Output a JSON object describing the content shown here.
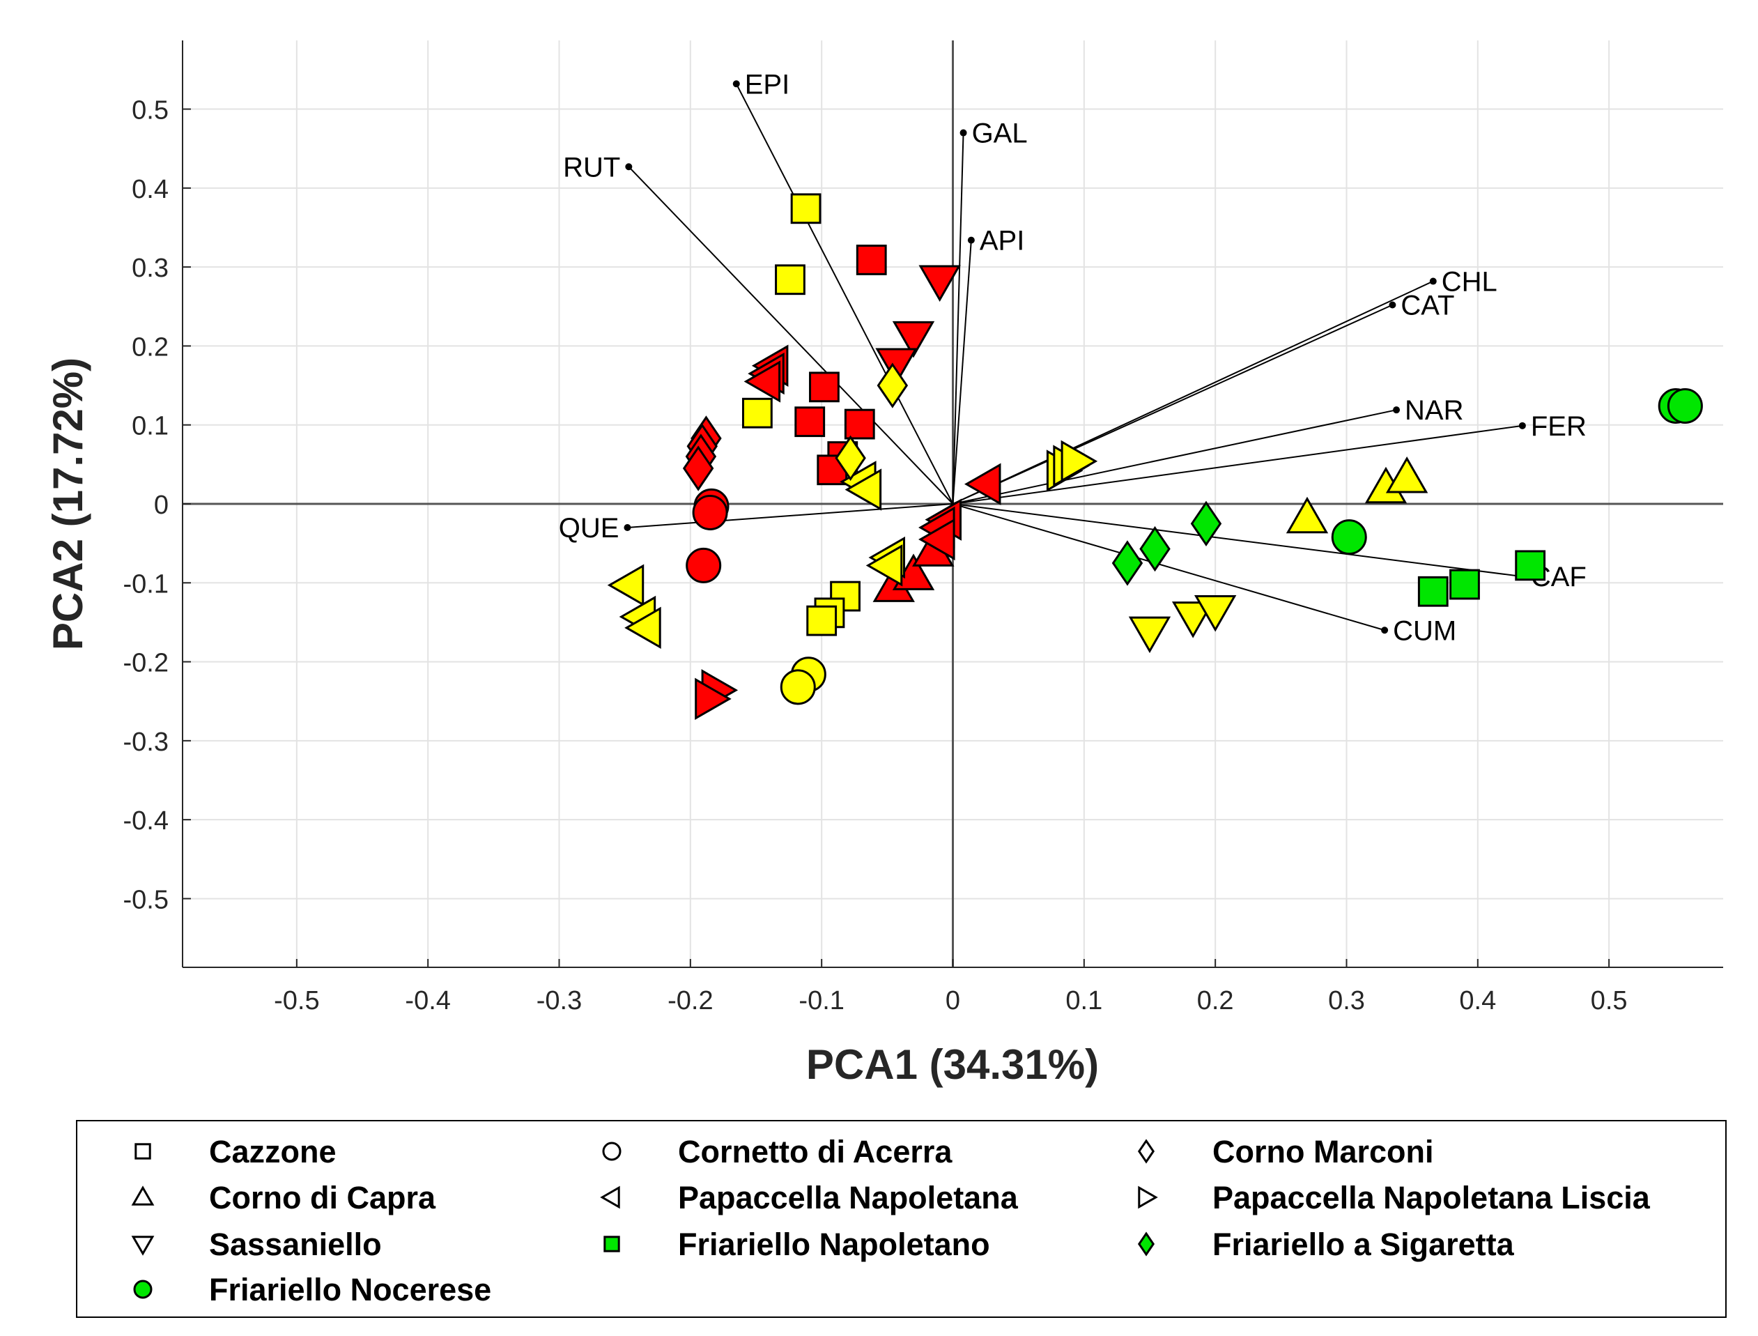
{
  "chart_data": {
    "type": "scatter",
    "title": "",
    "xlabel": "PCA1 (34.31%)",
    "ylabel": "PCA2 (17.72%)",
    "xlim": [
      -0.587,
      0.587
    ],
    "ylim": [
      -0.587,
      0.587
    ],
    "xticks": [
      -0.5,
      -0.4,
      -0.3,
      -0.2,
      -0.1,
      0,
      0.1,
      0.2,
      0.3,
      0.4,
      0.5
    ],
    "yticks": [
      -0.5,
      -0.4,
      -0.3,
      -0.2,
      -0.1,
      0,
      0.1,
      0.2,
      0.3,
      0.4,
      0.5
    ],
    "xtick_labels": [
      "-0.5",
      "-0.4",
      "-0.3",
      "-0.2",
      "-0.1",
      "0",
      "0.1",
      "0.2",
      "0.3",
      "0.4",
      "0.5"
    ],
    "ytick_labels": [
      "-0.5",
      "-0.4",
      "-0.3",
      "-0.2",
      "-0.1",
      "0",
      "0.1",
      "0.2",
      "0.3",
      "0.4",
      "0.5"
    ],
    "grid": true,
    "legend_placement": "bottom",
    "colors": {
      "red": "#ff0000",
      "yellow": "#ffff00",
      "green": "#00e600",
      "edge": "#000000"
    },
    "loadings": [
      {
        "label": "EPI",
        "x": -0.165,
        "y": 0.532
      },
      {
        "label": "GAL",
        "x": 0.008,
        "y": 0.47
      },
      {
        "label": "RUT",
        "x": -0.247,
        "y": 0.427
      },
      {
        "label": "API",
        "x": 0.014,
        "y": 0.334
      },
      {
        "label": "CHL",
        "x": 0.366,
        "y": 0.282
      },
      {
        "label": "CAT",
        "x": 0.335,
        "y": 0.252
      },
      {
        "label": "NAR",
        "x": 0.338,
        "y": 0.119
      },
      {
        "label": "FER",
        "x": 0.434,
        "y": 0.099
      },
      {
        "label": "QUE",
        "x": -0.248,
        "y": -0.03
      },
      {
        "label": "CAF",
        "x": 0.434,
        "y": -0.092
      },
      {
        "label": "CUM",
        "x": 0.329,
        "y": -0.16
      }
    ],
    "series": [
      {
        "name": "Cazzone",
        "marker": "square",
        "color": "yellow",
        "points": [
          [
            -0.112,
            0.374
          ],
          [
            -0.124,
            0.284
          ],
          [
            -0.149,
            0.115
          ],
          [
            -0.082,
            -0.117
          ],
          [
            -0.094,
            -0.138
          ],
          [
            -0.1,
            -0.148
          ]
        ]
      },
      {
        "name": "Cazzone",
        "marker": "square",
        "color": "red",
        "points": [
          [
            -0.062,
            0.309
          ],
          [
            -0.098,
            0.148
          ],
          [
            -0.109,
            0.104
          ],
          [
            -0.071,
            0.101
          ],
          [
            -0.084,
            0.06
          ],
          [
            -0.092,
            0.043
          ]
        ]
      },
      {
        "name": "Corno di Capra",
        "marker": "triangle-up",
        "color": "yellow",
        "points": [
          [
            0.27,
            -0.018
          ],
          [
            0.33,
            0.02
          ],
          [
            0.346,
            0.033
          ]
        ]
      },
      {
        "name": "Corno di Capra",
        "marker": "triangle-up",
        "color": "red",
        "points": [
          [
            -0.045,
            -0.105
          ],
          [
            -0.03,
            -0.09
          ],
          [
            -0.015,
            -0.06
          ]
        ]
      },
      {
        "name": "Sassaniello",
        "marker": "triangle-down",
        "color": "yellow",
        "points": [
          [
            0.15,
            -0.162
          ],
          [
            0.183,
            -0.143
          ],
          [
            0.2,
            -0.135
          ]
        ]
      },
      {
        "name": "Sassaniello",
        "marker": "triangle-down",
        "color": "red",
        "points": [
          [
            -0.01,
            0.283
          ],
          [
            -0.03,
            0.212
          ],
          [
            -0.043,
            0.178
          ]
        ]
      },
      {
        "name": "Friariello Nocerese",
        "marker": "circle",
        "color": "green",
        "points": [
          [
            0.551,
            0.124
          ],
          [
            0.558,
            0.124
          ],
          [
            0.302,
            -0.042
          ]
        ]
      },
      {
        "name": "Cornetto di Acerra",
        "marker": "circle",
        "color": "red",
        "points": [
          [
            -0.184,
            -0.003
          ],
          [
            -0.185,
            -0.011
          ],
          [
            -0.19,
            -0.078
          ]
        ]
      },
      {
        "name": "Cornetto di Acerra",
        "marker": "circle",
        "color": "yellow",
        "points": [
          [
            -0.11,
            -0.216
          ],
          [
            -0.118,
            -0.232
          ]
        ]
      },
      {
        "name": "Papaccella Napoletana",
        "marker": "triangle-left",
        "color": "red",
        "points": [
          [
            -0.137,
            0.175
          ],
          [
            -0.14,
            0.165
          ],
          [
            -0.143,
            0.155
          ],
          [
            0.025,
            0.025
          ],
          [
            -0.005,
            -0.02
          ],
          [
            -0.01,
            -0.03
          ],
          [
            -0.01,
            -0.045
          ]
        ]
      },
      {
        "name": "Papaccella Napoletana",
        "marker": "triangle-left",
        "color": "yellow",
        "points": [
          [
            -0.247,
            -0.103
          ],
          [
            -0.238,
            -0.143
          ],
          [
            -0.234,
            -0.157
          ],
          [
            -0.07,
            0.028
          ],
          [
            -0.066,
            0.018
          ],
          [
            -0.048,
            -0.068
          ],
          [
            -0.05,
            -0.078
          ]
        ]
      },
      {
        "name": "Corno Marconi",
        "marker": "diamond",
        "color": "red",
        "points": [
          [
            -0.188,
            0.083
          ],
          [
            -0.191,
            0.073
          ],
          [
            -0.192,
            0.06
          ],
          [
            -0.194,
            0.045
          ]
        ]
      },
      {
        "name": "Corno Marconi",
        "marker": "diamond",
        "color": "yellow",
        "points": [
          [
            -0.046,
            0.15
          ],
          [
            -0.078,
            0.058
          ]
        ]
      },
      {
        "name": "Papaccella Napoletana Liscia",
        "marker": "triangle-right",
        "color": "yellow",
        "points": [
          [
            0.083,
            0.042
          ],
          [
            0.088,
            0.048
          ],
          [
            0.094,
            0.054
          ]
        ]
      },
      {
        "name": "Papaccella Napoletana Liscia",
        "marker": "triangle-right",
        "color": "red",
        "points": [
          [
            -0.18,
            -0.236
          ],
          [
            -0.185,
            -0.247
          ]
        ]
      },
      {
        "name": "Friariello Napoletano",
        "marker": "square",
        "color": "green",
        "points": [
          [
            0.44,
            -0.078
          ],
          [
            0.39,
            -0.102
          ],
          [
            0.366,
            -0.111
          ]
        ]
      },
      {
        "name": "Friariello a Sigaretta",
        "marker": "diamond",
        "color": "green",
        "points": [
          [
            0.193,
            -0.025
          ],
          [
            0.154,
            -0.057
          ],
          [
            0.133,
            -0.075
          ]
        ]
      }
    ],
    "legend": [
      {
        "label": "Cazzone",
        "marker": "square",
        "color": "none"
      },
      {
        "label": "Cornetto di Acerra",
        "marker": "circle",
        "color": "none"
      },
      {
        "label": "Corno Marconi",
        "marker": "diamond",
        "color": "none"
      },
      {
        "label": "Corno di Capra",
        "marker": "triangle-up",
        "color": "none"
      },
      {
        "label": "Papaccella Napoletana",
        "marker": "triangle-left",
        "color": "none"
      },
      {
        "label": "Papaccella Napoletana Liscia",
        "marker": "triangle-right",
        "color": "none"
      },
      {
        "label": "Sassaniello",
        "marker": "triangle-down",
        "color": "none"
      },
      {
        "label": "Friariello Napoletano",
        "marker": "square",
        "color": "green"
      },
      {
        "label": "Friariello a Sigaretta",
        "marker": "diamond",
        "color": "green"
      },
      {
        "label": "Friariello Nocerese",
        "marker": "circle",
        "color": "green"
      }
    ]
  }
}
